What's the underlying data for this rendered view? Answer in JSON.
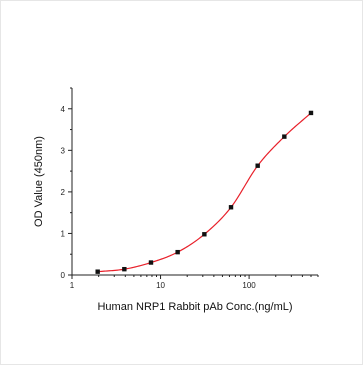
{
  "chart_data": {
    "type": "scatter",
    "title": "",
    "xlabel": "Human NRP1 Rabbit pAb Conc.(ng/mL)",
    "ylabel": "OD Value (450nm)",
    "xscale": "log",
    "xlim": [
      1,
      600
    ],
    "ylim": [
      0,
      4.5
    ],
    "x_ticks": [
      1,
      10,
      100
    ],
    "x_tick_labels": [
      "1",
      "10",
      "100"
    ],
    "y_ticks": [
      0,
      1,
      2,
      3,
      4
    ],
    "y_tick_labels": [
      "0",
      "1",
      "2",
      "3",
      "4"
    ],
    "grid": false,
    "legend": "none",
    "series": [
      {
        "x": [
          1.95,
          3.9,
          7.8,
          15.6,
          31.25,
          62.5,
          125,
          250,
          500
        ],
        "y": [
          0.08,
          0.14,
          0.3,
          0.55,
          0.98,
          1.63,
          2.63,
          3.33,
          3.9
        ],
        "marker_color": "#111111",
        "fit_color": "#e8202a"
      }
    ]
  }
}
